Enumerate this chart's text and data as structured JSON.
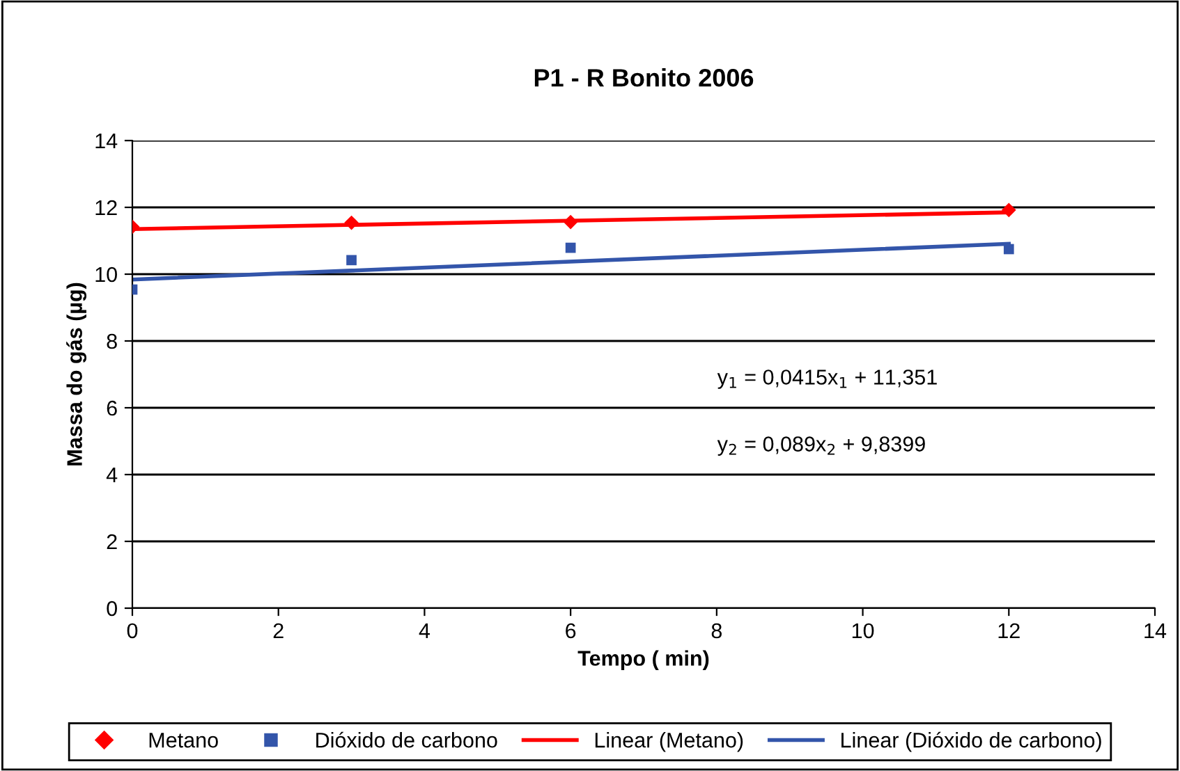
{
  "chart_data": {
    "type": "scatter",
    "title": "P1 - R Bonito 2006",
    "xlabel": "Tempo ( min)",
    "ylabel": "Massa do gás (µg)",
    "xlim": [
      0,
      14
    ],
    "xticks": [
      0,
      2,
      4,
      6,
      8,
      10,
      12,
      14
    ],
    "ylim": [
      0,
      14
    ],
    "yticks": [
      0,
      2,
      4,
      6,
      8,
      10,
      12,
      14
    ],
    "grid": "y",
    "legend": "bottom",
    "series": [
      {
        "name": "Metano",
        "marker": "diamond",
        "color": "#ff0000",
        "x": [
          0,
          3,
          6,
          12
        ],
        "values": [
          11.42,
          11.54,
          11.56,
          11.92
        ]
      },
      {
        "name": "Dióxido de carbono",
        "marker": "square",
        "color": "#3355aa",
        "x": [
          0,
          3,
          6,
          12
        ],
        "values": [
          9.54,
          10.42,
          10.79,
          10.75
        ]
      },
      {
        "name": "Linear (Metano)",
        "type": "line",
        "color": "#ff0000",
        "x": [
          0,
          12
        ],
        "values": [
          11.35,
          11.85
        ]
      },
      {
        "name": "Linear (Dióxido de carbono)",
        "type": "line",
        "color": "#3355aa",
        "x": [
          0,
          12
        ],
        "values": [
          9.84,
          10.91
        ]
      }
    ],
    "annotations": [
      "y$_{1}$ = 0,0415x$_{1}$ + 11,351",
      "y$_{2}$ = 0,089x$_{2}$ + 9,8399"
    ]
  }
}
